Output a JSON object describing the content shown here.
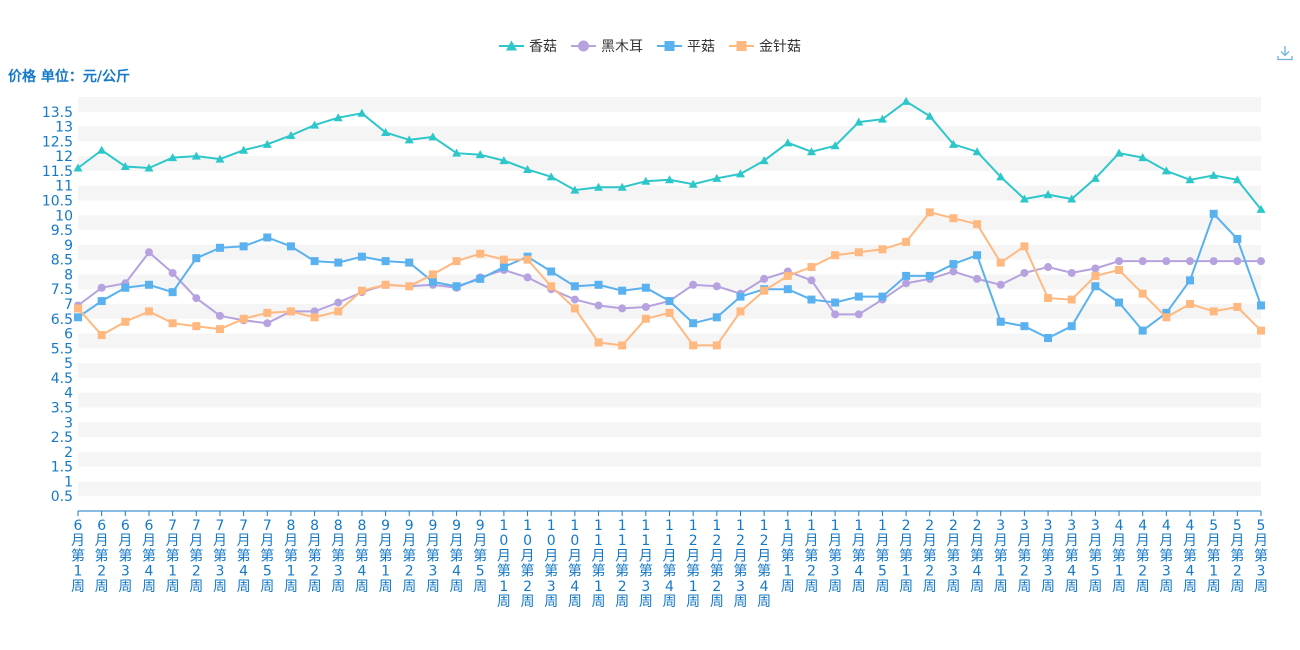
{
  "unit_label": "价格 单位：元/公斤",
  "toolbar": {
    "download_icon": "download-icon"
  },
  "colors": {
    "shiitake": "#2ec7c9",
    "black_fungus": "#b6a2de",
    "oyster": "#5ab1ef",
    "enoki": "#ffb980",
    "axis_text": "#1479c8",
    "grid_band": "#f5f5f5"
  },
  "chart_data": {
    "type": "line",
    "title": "",
    "ylabel": "价格 单位：元/公斤",
    "xlabel": "",
    "ylim": [
      0,
      14
    ],
    "grid": true,
    "legend_position": "top-center",
    "y_ticks": [
      "0.5",
      "1",
      "1.5",
      "2",
      "2.5",
      "3",
      "3.5",
      "4",
      "4.5",
      "5",
      "5.5",
      "6",
      "6.5",
      "7",
      "7.5",
      "8",
      "8.5",
      "9",
      "9.5",
      "10",
      "10.5",
      "11",
      "11.5",
      "12",
      "12.5",
      "13",
      "13.5"
    ],
    "categories": [
      "6月第1周",
      "6月第2周",
      "6月第3周",
      "6月第4周",
      "7月第1周",
      "7月第2周",
      "7月第3周",
      "7月第4周",
      "7月第5周",
      "8月第1周",
      "8月第2周",
      "8月第3周",
      "8月第4周",
      "9月第1周",
      "9月第2周",
      "9月第3周",
      "9月第4周",
      "9月第5周",
      "10月第1周",
      "10月第2周",
      "10月第3周",
      "10月第4周",
      "11月第1周",
      "11月第2周",
      "11月第3周",
      "11月第4周",
      "12月第1周",
      "12月第2周",
      "12月第3周",
      "12月第4周",
      "1月第1周",
      "1月第2周",
      "1月第3周",
      "1月第4周",
      "1月第5周",
      "2月第1周",
      "2月第2周",
      "2月第3周",
      "2月第4周",
      "3月第1周",
      "3月第2周",
      "3月第3周",
      "3月第4周",
      "3月第5周",
      "4月第1周",
      "4月第2周",
      "4月第3周",
      "4月第4周",
      "5月第1周",
      "5月第2周",
      "5月第3周"
    ],
    "series": [
      {
        "name": "香菇",
        "marker": "triangle",
        "color": "#2ec7c9",
        "values": [
          11.6,
          12.2,
          11.65,
          11.6,
          11.95,
          12.0,
          11.9,
          12.2,
          12.4,
          12.7,
          13.05,
          13.3,
          13.45,
          12.8,
          12.55,
          12.65,
          12.1,
          12.05,
          11.85,
          11.55,
          11.3,
          10.85,
          10.95,
          10.95,
          11.15,
          11.2,
          11.05,
          11.25,
          11.4,
          11.85,
          12.45,
          12.15,
          12.35,
          13.15,
          13.25,
          13.85,
          13.35,
          12.4,
          12.15,
          11.3,
          10.55,
          10.7,
          10.55,
          11.25,
          12.1,
          11.95,
          11.5,
          11.2,
          11.35,
          11.2,
          10.2
        ]
      },
      {
        "name": "黑木耳",
        "marker": "circle",
        "color": "#b6a2de",
        "values": [
          6.95,
          7.55,
          7.7,
          8.75,
          8.05,
          7.2,
          6.6,
          6.45,
          6.35,
          6.75,
          6.75,
          7.05,
          7.4,
          7.65,
          7.6,
          7.65,
          7.55,
          7.9,
          8.15,
          7.9,
          7.5,
          7.15,
          6.95,
          6.85,
          6.9,
          7.1,
          7.65,
          7.6,
          7.35,
          7.85,
          8.1,
          7.8,
          6.65,
          6.65,
          7.15,
          7.7,
          7.85,
          8.1,
          7.85,
          7.65,
          8.05,
          8.25,
          8.05,
          8.2,
          8.45,
          8.45,
          8.45,
          8.45,
          8.45,
          8.45,
          8.45
        ]
      },
      {
        "name": "平菇",
        "marker": "rect",
        "color": "#5ab1ef",
        "values": [
          6.55,
          7.1,
          7.55,
          7.65,
          7.4,
          8.55,
          8.9,
          8.95,
          9.25,
          8.95,
          8.45,
          8.4,
          8.6,
          8.45,
          8.4,
          7.75,
          7.6,
          7.85,
          8.25,
          8.6,
          8.1,
          7.6,
          7.65,
          7.45,
          7.55,
          7.1,
          6.35,
          6.55,
          7.25,
          7.5,
          7.5,
          7.15,
          7.05,
          7.25,
          7.25,
          7.95,
          7.95,
          8.35,
          8.65,
          6.4,
          6.25,
          5.85,
          6.25,
          7.6,
          7.05,
          6.1,
          6.7,
          7.8,
          10.05,
          9.2,
          6.95
        ]
      },
      {
        "name": "金针菇",
        "marker": "rect",
        "color": "#ffb980",
        "values": [
          6.85,
          5.95,
          6.4,
          6.75,
          6.35,
          6.25,
          6.15,
          6.5,
          6.7,
          6.75,
          6.55,
          6.75,
          7.45,
          7.65,
          7.6,
          8.0,
          8.45,
          8.7,
          8.5,
          8.5,
          7.6,
          6.85,
          5.7,
          5.6,
          6.5,
          6.7,
          5.6,
          5.6,
          6.75,
          7.45,
          7.95,
          8.25,
          8.65,
          8.75,
          8.85,
          9.1,
          10.1,
          9.9,
          9.7,
          8.4,
          8.95,
          7.2,
          7.15,
          7.95,
          8.15,
          7.35,
          6.55,
          7.0,
          6.75,
          6.9,
          6.1
        ]
      }
    ]
  }
}
